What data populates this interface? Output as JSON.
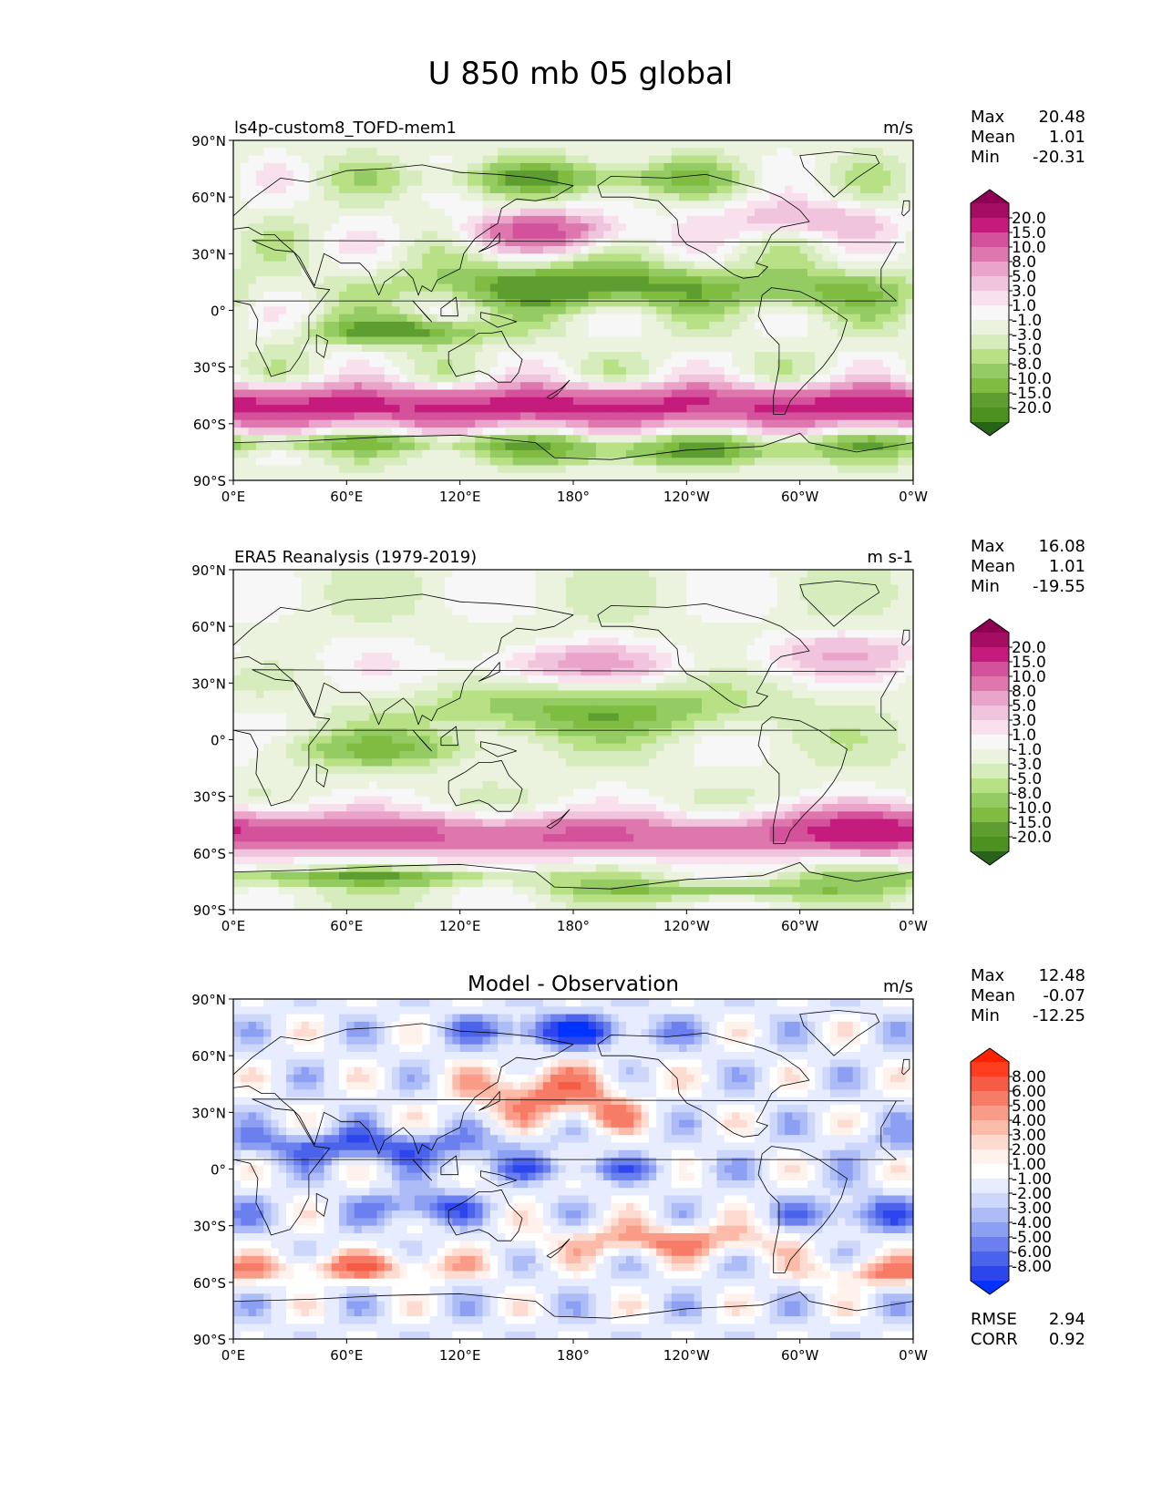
{
  "title": "U 850 mb 05 global",
  "x_ticks": [
    "0°E",
    "60°E",
    "120°E",
    "180°",
    "120°W",
    "60°W",
    "0°W"
  ],
  "y_ticks": [
    "90°N",
    "60°N",
    "30°N",
    "0°",
    "30°S",
    "60°S",
    "90°S"
  ],
  "panels": [
    {
      "left_title": "ls4p-custom8_TOFD-mem1",
      "center_title": "",
      "units": "m/s",
      "stats": [
        {
          "label": "Max",
          "value": "20.48"
        },
        {
          "label": "Mean",
          "value": "1.01"
        },
        {
          "label": "Min",
          "value": "-20.31"
        }
      ],
      "colorbar_labels": [
        "20.0",
        "15.0",
        "10.0",
        "8.0",
        "5.0",
        "3.0",
        "1.0",
        "-1.0",
        "-3.0",
        "-5.0",
        "-8.0",
        "-10.0",
        "-15.0",
        "-20.0"
      ],
      "colors": [
        "#8e0152",
        "#a50d62",
        "#c51b7d",
        "#d4519b",
        "#de77ae",
        "#eaa3c9",
        "#f1c4dd",
        "#f8e1ec",
        "#f7f7f7",
        "#ebf3de",
        "#d6ecbc",
        "#b8e186",
        "#94cb62",
        "#7fbc41",
        "#5e9e30",
        "#4d9221",
        "#276419"
      ],
      "field": "model"
    },
    {
      "left_title": "ERA5 Reanalysis (1979-2019)",
      "center_title": "",
      "units": "m s-1",
      "stats": [
        {
          "label": "Max",
          "value": "16.08"
        },
        {
          "label": "Mean",
          "value": "1.01"
        },
        {
          "label": "Min",
          "value": "-19.55"
        }
      ],
      "colorbar_labels": [
        "20.0",
        "15.0",
        "10.0",
        "8.0",
        "5.0",
        "3.0",
        "1.0",
        "-1.0",
        "-3.0",
        "-5.0",
        "-8.0",
        "-10.0",
        "-15.0",
        "-20.0"
      ],
      "colors": [
        "#8e0152",
        "#a50d62",
        "#c51b7d",
        "#d4519b",
        "#de77ae",
        "#eaa3c9",
        "#f1c4dd",
        "#f8e1ec",
        "#f7f7f7",
        "#ebf3de",
        "#d6ecbc",
        "#b8e186",
        "#94cb62",
        "#7fbc41",
        "#5e9e30",
        "#4d9221",
        "#276419"
      ],
      "field": "obs"
    },
    {
      "left_title": "",
      "center_title": "Model - Observation",
      "units": "m/s",
      "stats": [
        {
          "label": "Max",
          "value": "12.48"
        },
        {
          "label": "Mean",
          "value": "-0.07"
        },
        {
          "label": "Min",
          "value": "-12.25"
        }
      ],
      "colorbar_labels": [
        "8.00",
        "6.00",
        "5.00",
        "4.00",
        "3.00",
        "2.00",
        "1.00",
        "-1.00",
        "-2.00",
        "-3.00",
        "-4.00",
        "-5.00",
        "-6.00",
        "-8.00"
      ],
      "colors": [
        "#ff2200",
        "#ff3d1f",
        "#f65b45",
        "#f77c67",
        "#fa9b88",
        "#fcbba9",
        "#fddbd0",
        "#fff1ec",
        "#ffffff",
        "#e7ecff",
        "#cdd7fb",
        "#adbcf7",
        "#8d9ff2",
        "#6b80ee",
        "#4b63ea",
        "#2d45ec",
        "#0033ff"
      ],
      "field": "diff",
      "extra_stats": [
        {
          "label": "RMSE",
          "value": "2.94"
        },
        {
          "label": "CORR",
          "value": "0.92"
        }
      ]
    }
  ],
  "chart_data": {
    "type": "heatmap",
    "title": "U 850 mb 05 global",
    "variable": "U",
    "level": "850 mb",
    "month": "05",
    "x_range_lon": [
      0,
      360
    ],
    "y_range_lat": [
      -90,
      90
    ],
    "panels": [
      {
        "name": "ls4p-custom8_TOFD-mem1",
        "units": "m/s",
        "max": 20.48,
        "mean": 1.01,
        "min": -20.31,
        "levels": [
          -20,
          -15,
          -10,
          -8,
          -5,
          -3,
          -1,
          1,
          3,
          5,
          8,
          10,
          15,
          20
        ]
      },
      {
        "name": "ERA5 Reanalysis (1979-2019)",
        "units": "m s-1",
        "max": 16.08,
        "mean": 1.01,
        "min": -19.55,
        "levels": [
          -20,
          -15,
          -10,
          -8,
          -5,
          -3,
          -1,
          1,
          3,
          5,
          8,
          10,
          15,
          20
        ]
      },
      {
        "name": "Model - Observation",
        "units": "m/s",
        "max": 12.48,
        "mean": -0.07,
        "min": -12.25,
        "levels": [
          -8,
          -6,
          -5,
          -4,
          -3,
          -2,
          -1,
          1,
          2,
          3,
          4,
          5,
          6,
          8
        ],
        "rmse": 2.94,
        "corr": 0.92
      }
    ]
  }
}
